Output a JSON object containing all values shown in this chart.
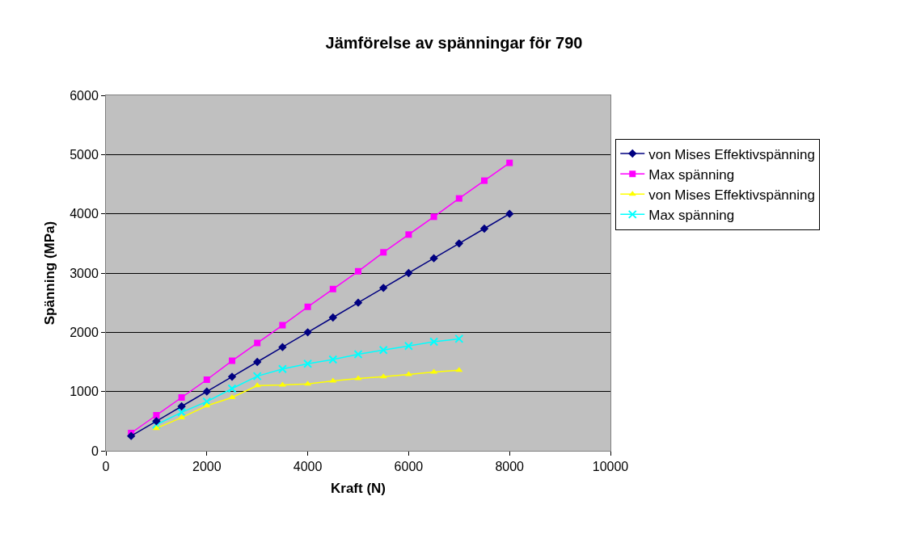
{
  "chart_data": {
    "type": "line",
    "title": "Jämförelse av spänningar för 790",
    "xlabel": "Kraft (N)",
    "ylabel": "Spänning (MPa)",
    "xlim": [
      0,
      10000
    ],
    "xticks": [
      0,
      2000,
      4000,
      6000,
      8000,
      10000
    ],
    "ylim": [
      0,
      6000
    ],
    "yticks": [
      0,
      1000,
      2000,
      3000,
      4000,
      5000,
      6000
    ],
    "grid": "y",
    "legend": "right",
    "series": [
      {
        "name": "von Mises Effektivspänning",
        "color": "#000080",
        "marker": "diamond",
        "x": [
          500,
          1000,
          1500,
          2000,
          2500,
          3000,
          3500,
          4000,
          4500,
          5000,
          5500,
          6000,
          6500,
          7000,
          7500,
          8000
        ],
        "values": [
          250,
          500,
          750,
          1000,
          1250,
          1500,
          1750,
          2000,
          2250,
          2500,
          2750,
          3000,
          3250,
          3500,
          3750,
          4000
        ]
      },
      {
        "name": "Max spänning",
        "color": "#ff00ff",
        "marker": "square",
        "x": [
          500,
          1000,
          1500,
          2000,
          2500,
          3000,
          3500,
          4000,
          4500,
          5000,
          5500,
          6000,
          6500,
          7000,
          7500,
          8000
        ],
        "values": [
          300,
          600,
          900,
          1200,
          1520,
          1820,
          2120,
          2430,
          2730,
          3030,
          3350,
          3650,
          3950,
          4260,
          4560,
          4860
        ]
      },
      {
        "name": "von Mises Effektivspänning",
        "color": "#ffff00",
        "marker": "triangle",
        "x": [
          1000,
          1500,
          2000,
          2500,
          3000,
          3500,
          4000,
          4500,
          5000,
          5500,
          6000,
          6500,
          7000
        ],
        "values": [
          380,
          560,
          760,
          900,
          1100,
          1110,
          1130,
          1180,
          1220,
          1250,
          1290,
          1330,
          1360
        ]
      },
      {
        "name": "Max spänning",
        "color": "#00ffff",
        "marker": "cross",
        "x": [
          1000,
          1500,
          2000,
          2500,
          3000,
          3500,
          4000,
          4500,
          5000,
          5500,
          6000,
          6500,
          7000
        ],
        "values": [
          440,
          650,
          830,
          1050,
          1260,
          1380,
          1470,
          1540,
          1630,
          1700,
          1770,
          1840,
          1890
        ]
      }
    ]
  }
}
